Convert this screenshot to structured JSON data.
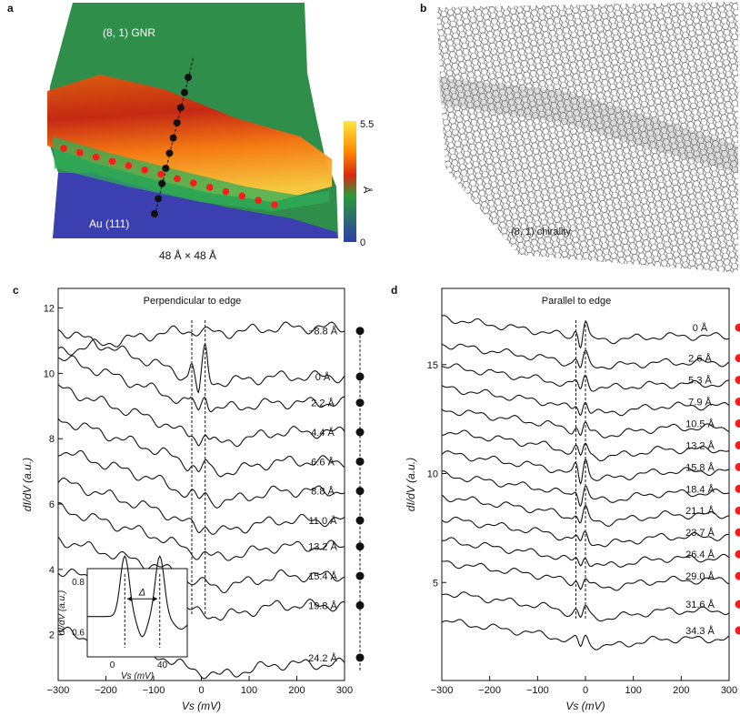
{
  "panels": {
    "a": {
      "letter": "a",
      "label_gnr": "(8, 1) GNR",
      "label_au": "Au (111)",
      "scale_text": "48 Å × 48 Å",
      "colorbar": {
        "max_label": "5.5",
        "min_label": "0",
        "unit": "Å",
        "colors": [
          "#ffe640",
          "#ff8a00",
          "#d82a10",
          "#2a9a3a",
          "#2d3ea8"
        ]
      },
      "colors": {
        "gnr": "#2f8f4a",
        "au": "#3b3fb0",
        "ribbon_edge": "#ff8a1a",
        "ribbon_core": "#c81e0e",
        "dot_black": "#111111",
        "dot_red": "#ff1a1a"
      }
    },
    "b": {
      "letter": "b",
      "chirality_label": "(8, 1) chirality"
    },
    "c": {
      "letter": "c",
      "title": "Perpendicular to edge",
      "ylabel": "dI/dV (a.u.)",
      "xlabel": "Vs (mV)",
      "inset": {
        "ylabel": "dI/dV (a.u.)",
        "xlabel": "Vs (mV)",
        "delta_label": "Δ",
        "yticks": [
          "0.8",
          "0.6"
        ],
        "xticks": [
          "0",
          "40"
        ]
      }
    },
    "d": {
      "letter": "d",
      "title": "Parallel to edge",
      "ylabel": "dI/dV (a.u.)",
      "xlabel": "Vs (mV)"
    }
  },
  "chart_data": [
    {
      "type": "line",
      "panel": "c",
      "title": "Perpendicular to edge",
      "xlabel": "Vs (mV)",
      "ylabel": "dI/dV (a.u.)",
      "xlim": [
        -300,
        300
      ],
      "ylim": [
        0.6,
        12.6
      ],
      "xticks": [
        -300,
        -200,
        -100,
        0,
        100,
        200,
        300
      ],
      "yticks": [
        2,
        4,
        6,
        8,
        10,
        12
      ],
      "dashed_lines_x": [
        -20,
        8
      ],
      "grid": false,
      "series": [
        {
          "name": "−8.8 Å",
          "offset": 11.4,
          "label_y": 11.3,
          "peak": 0.0
        },
        {
          "name": "0 Å",
          "offset": 9.9,
          "label_y": 9.9,
          "peak": 1.0
        },
        {
          "name": "2.2 Å",
          "offset": 9.1,
          "label_y": 9.1,
          "peak": 0.4
        },
        {
          "name": "4.4 Å",
          "offset": 8.2,
          "label_y": 8.2,
          "peak": 0.3
        },
        {
          "name": "6.6 Å",
          "offset": 7.3,
          "label_y": 7.3,
          "peak": 0.25
        },
        {
          "name": "8.8 Å",
          "offset": 6.4,
          "label_y": 6.4,
          "peak": 0.15
        },
        {
          "name": "11.0 Å",
          "offset": 5.5,
          "label_y": 5.5,
          "peak": 0.1
        },
        {
          "name": "13.2 Å",
          "offset": 4.7,
          "label_y": 4.7,
          "peak": 0.05
        },
        {
          "name": "15.4 Å",
          "offset": 3.8,
          "label_y": 3.8,
          "peak": 0.05
        },
        {
          "name": "19.8 Å",
          "offset": 2.9,
          "label_y": 2.9,
          "peak": 0.0
        },
        {
          "name": "24.2 Å",
          "offset": 1.1,
          "label_y": 1.3,
          "peak": 0.0
        }
      ]
    },
    {
      "type": "line",
      "panel": "d",
      "title": "Parallel to edge",
      "xlabel": "Vs (mV)",
      "ylabel": "dI/dV (a.u.)",
      "xlim": [
        -300,
        300
      ],
      "ylim": [
        0.5,
        18.5
      ],
      "xticks": [
        -300,
        -200,
        -100,
        0,
        100,
        200,
        300
      ],
      "yticks": [
        5,
        10,
        15
      ],
      "dashed_lines_x": [
        -20,
        0
      ],
      "grid": false,
      "series": [
        {
          "name": "0 Å",
          "offset": 16.3,
          "label_y": 16.7,
          "peak": 0.8
        },
        {
          "name": "2.6 Å",
          "offset": 15.1,
          "label_y": 15.3,
          "peak": 0.5
        },
        {
          "name": "5.3 Å",
          "offset": 14.1,
          "label_y": 14.3,
          "peak": 0.5
        },
        {
          "name": "7.9 Å",
          "offset": 13.1,
          "label_y": 13.3,
          "peak": 0.5
        },
        {
          "name": "10.5 Å",
          "offset": 12.1,
          "label_y": 12.3,
          "peak": 0.5
        },
        {
          "name": "13.2 Å",
          "offset": 11.1,
          "label_y": 11.3,
          "peak": 0.5
        },
        {
          "name": "15.8 Å",
          "offset": 10.1,
          "label_y": 10.3,
          "peak": 0.9
        },
        {
          "name": "18.4 Å",
          "offset": 9.1,
          "label_y": 9.3,
          "peak": 0.6
        },
        {
          "name": "21.1 Å",
          "offset": 8.1,
          "label_y": 8.3,
          "peak": 0.5
        },
        {
          "name": "23.7 Å",
          "offset": 7.1,
          "label_y": 7.3,
          "peak": 0.4
        },
        {
          "name": "26.4 Å",
          "offset": 6.1,
          "label_y": 6.3,
          "peak": 0.4
        },
        {
          "name": "29.0 Å",
          "offset": 5.1,
          "label_y": 5.3,
          "peak": 0.4
        },
        {
          "name": "31.6 Å",
          "offset": 3.7,
          "label_y": 4.0,
          "peak": 0.4
        },
        {
          "name": "34.3 Å",
          "offset": 2.4,
          "label_y": 2.8,
          "peak": 0.4
        }
      ]
    }
  ]
}
